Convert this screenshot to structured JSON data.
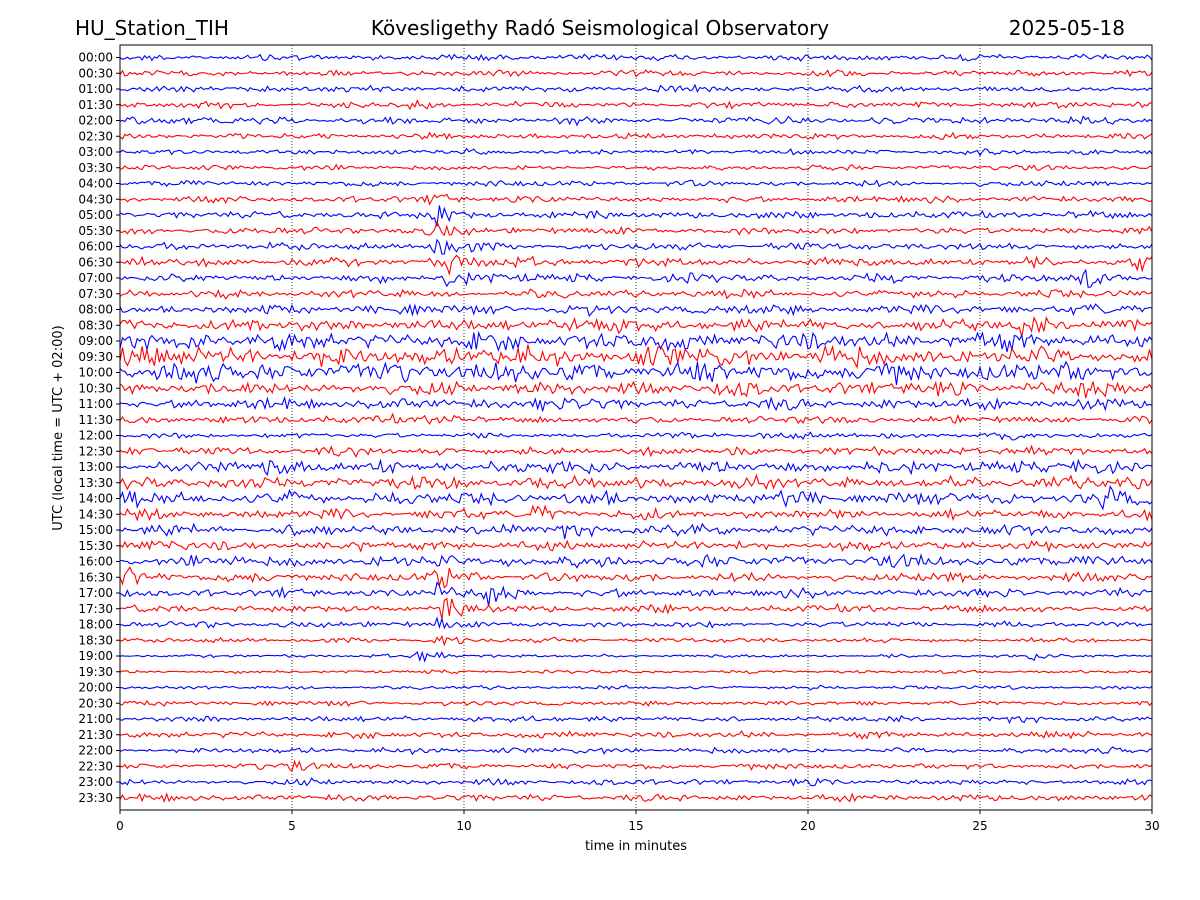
{
  "header": {
    "station": "HU_Station_TIH",
    "observatory": "Kövesligethy Radó Seismological Observatory",
    "date": "2025-05-18"
  },
  "chart_data": {
    "type": "line",
    "title": "Kövesligethy Radó Seismological Observatory",
    "xlabel": "time in minutes",
    "ylabel": "UTC (local time = UTC + 02:00)",
    "xlim": [
      0,
      30
    ],
    "x_ticks": [
      "0",
      "5",
      "10",
      "15",
      "20",
      "25",
      "30"
    ],
    "x_tick_values": [
      0,
      5,
      10,
      15,
      20,
      25,
      30
    ],
    "grid": "vertical dotted",
    "series_colors": [
      "#0000ff",
      "#ff0000"
    ],
    "rows": [
      {
        "label": "00:00",
        "noise": 0.3,
        "events": []
      },
      {
        "label": "00:30",
        "noise": 0.28,
        "events": []
      },
      {
        "label": "01:00",
        "noise": 0.3,
        "events": []
      },
      {
        "label": "01:30",
        "noise": 0.3,
        "events": [
          [
            8.4,
            0.6
          ]
        ]
      },
      {
        "label": "02:00",
        "noise": 0.33,
        "events": [
          [
            0.2,
            0.6
          ]
        ]
      },
      {
        "label": "02:30",
        "noise": 0.28,
        "events": []
      },
      {
        "label": "03:00",
        "noise": 0.25,
        "events": []
      },
      {
        "label": "03:30",
        "noise": 0.25,
        "events": []
      },
      {
        "label": "04:00",
        "noise": 0.28,
        "events": []
      },
      {
        "label": "04:30",
        "noise": 0.3,
        "events": [
          [
            9.1,
            0.8
          ]
        ]
      },
      {
        "label": "05:00",
        "noise": 0.35,
        "events": [
          [
            9.1,
            1.3
          ]
        ]
      },
      {
        "label": "05:30",
        "noise": 0.35,
        "events": [
          [
            9.2,
            0.8
          ]
        ]
      },
      {
        "label": "06:00",
        "noise": 0.35,
        "events": [
          [
            9.0,
            1.3
          ]
        ]
      },
      {
        "label": "06:30",
        "noise": 0.42,
        "events": [
          [
            9.5,
            1.0
          ],
          [
            29.3,
            0.8
          ]
        ]
      },
      {
        "label": "07:00",
        "noise": 0.38,
        "events": [
          [
            9.5,
            1.5
          ],
          [
            27.9,
            1.3
          ]
        ]
      },
      {
        "label": "07:30",
        "noise": 0.38,
        "events": []
      },
      {
        "label": "08:00",
        "noise": 0.45,
        "events": []
      },
      {
        "label": "08:30",
        "noise": 0.6,
        "events": [
          [
            13.0,
            1.0
          ],
          [
            26.2,
            1.0
          ]
        ]
      },
      {
        "label": "09:00",
        "noise": 0.8,
        "events": []
      },
      {
        "label": "09:30",
        "noise": 0.95,
        "events": []
      },
      {
        "label": "10:00",
        "noise": 0.95,
        "events": []
      },
      {
        "label": "10:30",
        "noise": 0.65,
        "events": [
          [
            27.9,
            1.2
          ]
        ]
      },
      {
        "label": "11:00",
        "noise": 0.5,
        "events": [
          [
            12.1,
            0.9
          ]
        ]
      },
      {
        "label": "11:30",
        "noise": 0.35,
        "events": [
          [
            7.5,
            0.9
          ]
        ]
      },
      {
        "label": "12:00",
        "noise": 0.25,
        "events": [
          [
            25.4,
            1.0
          ],
          [
            18.7,
            0.5
          ]
        ]
      },
      {
        "label": "12:30",
        "noise": 0.4,
        "events": []
      },
      {
        "label": "13:00",
        "noise": 0.6,
        "events": [
          [
            4.1,
            1.0
          ]
        ]
      },
      {
        "label": "13:30",
        "noise": 0.6,
        "events": []
      },
      {
        "label": "14:00",
        "noise": 0.6,
        "events": [
          [
            0.2,
            0.9
          ],
          [
            28.7,
            0.9
          ]
        ]
      },
      {
        "label": "14:30",
        "noise": 0.45,
        "events": [
          [
            12.0,
            0.9
          ]
        ]
      },
      {
        "label": "15:00",
        "noise": 0.5,
        "events": [
          [
            12.6,
            1.1
          ]
        ]
      },
      {
        "label": "15:30",
        "noise": 0.45,
        "events": []
      },
      {
        "label": "16:00",
        "noise": 0.55,
        "events": [
          [
            9.2,
            1.0
          ]
        ]
      },
      {
        "label": "16:30",
        "noise": 0.45,
        "events": [
          [
            0.2,
            1.2
          ],
          [
            9.2,
            1.3
          ]
        ]
      },
      {
        "label": "17:00",
        "noise": 0.38,
        "events": [
          [
            10.7,
            1.4
          ],
          [
            9.2,
            0.9
          ]
        ]
      },
      {
        "label": "17:30",
        "noise": 0.35,
        "events": [
          [
            9.3,
            1.4
          ]
        ]
      },
      {
        "label": "18:00",
        "noise": 0.28,
        "events": [
          [
            9.2,
            0.8
          ]
        ]
      },
      {
        "label": "18:30",
        "noise": 0.22,
        "events": [
          [
            9.2,
            1.0
          ]
        ]
      },
      {
        "label": "19:00",
        "noise": 0.15,
        "events": [
          [
            8.7,
            1.0
          ],
          [
            26.4,
            0.5
          ]
        ]
      },
      {
        "label": "19:30",
        "noise": 0.15,
        "events": []
      },
      {
        "label": "20:00",
        "noise": 0.18,
        "events": []
      },
      {
        "label": "20:30",
        "noise": 0.22,
        "events": []
      },
      {
        "label": "21:00",
        "noise": 0.28,
        "events": []
      },
      {
        "label": "21:30",
        "noise": 0.3,
        "events": []
      },
      {
        "label": "22:00",
        "noise": 0.28,
        "events": []
      },
      {
        "label": "22:30",
        "noise": 0.28,
        "events": [
          [
            5.0,
            0.6
          ]
        ]
      },
      {
        "label": "23:00",
        "noise": 0.28,
        "events": []
      },
      {
        "label": "23:30",
        "noise": 0.32,
        "events": []
      }
    ]
  }
}
